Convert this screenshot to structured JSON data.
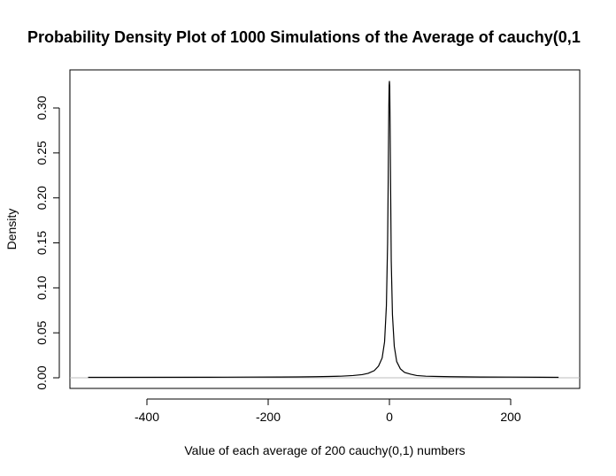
{
  "chart_data": {
    "type": "line",
    "title": "Probability Density Plot of 1000 Simulations of the Average of cauchy(0,1",
    "xlabel": "Value of each average of 200 cauchy(0,1) numbers",
    "ylabel": "Density",
    "xlim": [
      -500,
      280
    ],
    "ylim": [
      0,
      0.33
    ],
    "x_ticks": [
      -400,
      -200,
      0,
      200
    ],
    "y_ticks": [
      0.0,
      0.05,
      0.1,
      0.15,
      0.2,
      0.25,
      0.3
    ],
    "x_tick_labels": [
      "-400",
      "-200",
      "0",
      "200"
    ],
    "y_tick_labels": [
      "0.00",
      "0.05",
      "0.10",
      "0.15",
      "0.20",
      "0.25",
      "0.30"
    ],
    "grid": false,
    "zero_line": true,
    "line_color": "#000000",
    "series": [
      {
        "x": [
          -497,
          -300,
          -230,
          -180,
          -150,
          -120,
          -100,
          -80,
          -60,
          -45,
          -35,
          -25,
          -18,
          -12,
          -8,
          -5,
          -3,
          -2,
          -1,
          -0.5,
          0,
          0.5,
          1,
          2,
          3,
          5,
          8,
          12,
          18,
          25,
          35,
          45,
          60,
          80,
          100,
          150,
          200,
          250,
          279
        ],
        "y": [
          0.0005,
          0.0006,
          0.0008,
          0.0009,
          0.001,
          0.0012,
          0.0015,
          0.0018,
          0.0025,
          0.0035,
          0.005,
          0.008,
          0.013,
          0.022,
          0.04,
          0.08,
          0.15,
          0.22,
          0.3,
          0.325,
          0.33,
          0.324,
          0.29,
          0.21,
          0.13,
          0.07,
          0.035,
          0.018,
          0.01,
          0.006,
          0.004,
          0.0025,
          0.0018,
          0.0015,
          0.0012,
          0.0009,
          0.0008,
          0.0006,
          0.0005
        ]
      }
    ]
  }
}
